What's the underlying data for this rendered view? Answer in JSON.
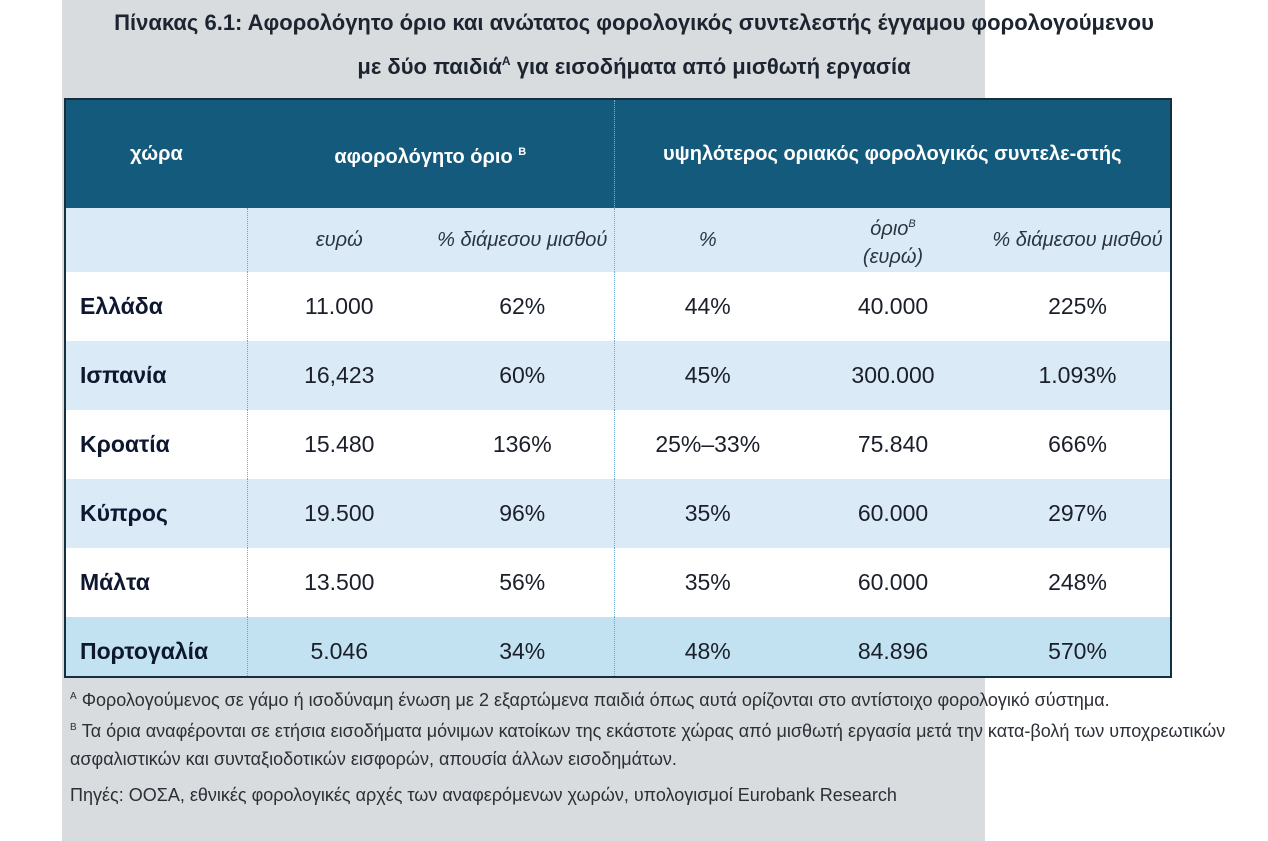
{
  "title": {
    "line1": "Πίνακας 6.1: Αφορολόγητο όριο και ανώτατος φορολογικός συντελεστής έγγαμου φορολογούμενου",
    "line2_pre": "με δύο παιδιά",
    "line2_sup": "A",
    "line2_post": " για εισοδήματα από μισθωτή εργασία"
  },
  "table": {
    "group_headers": {
      "country": "χώρα",
      "threshold": "αφορολόγητο όριο",
      "threshold_sup": "B",
      "top_rate": "υψηλότερος οριακός φορολογικός συντελε-στής"
    },
    "sub_headers": {
      "eur": "ευρώ",
      "pct_median_1": "% διάμεσου μισθού",
      "pct": "%",
      "limit": "όριο",
      "limit_sup": "B",
      "limit_unit": "(ευρώ)",
      "pct_median_2": "% διάμεσου μισθού"
    },
    "rows": [
      {
        "country": "Ελλάδα",
        "eur": "11.000",
        "pct_median": "62%",
        "rate": "44%",
        "limit": "40.000",
        "limit_pct_median": "225%"
      },
      {
        "country": "Ισπανία",
        "eur": "16,423",
        "pct_median": "60%",
        "rate": "45%",
        "limit": "300.000",
        "limit_pct_median": "1.093%"
      },
      {
        "country": "Κροατία",
        "eur": "15.480",
        "pct_median": "136%",
        "rate": "25%–33%",
        "limit": "75.840",
        "limit_pct_median": "666%"
      },
      {
        "country": "Κύπρος",
        "eur": "19.500",
        "pct_median": "96%",
        "rate": "35%",
        "limit": "60.000",
        "limit_pct_median": "297%"
      },
      {
        "country": "Μάλτα",
        "eur": "13.500",
        "pct_median": "56%",
        "rate": "35%",
        "limit": "60.000",
        "limit_pct_median": "248%"
      },
      {
        "country": "Πορτογαλία",
        "eur": "5.046",
        "pct_median": "34%",
        "rate": "48%",
        "limit": "84.896",
        "limit_pct_median": "570%"
      }
    ]
  },
  "notes": {
    "a_sup": "A",
    "a_text": "Φορολογούμενος σε γάμο ή ισοδύναμη ένωση με 2 εξαρτώμενα παιδιά όπως αυτά ορίζονται στο αντίστοιχο φορολογικό σύστημα.",
    "b_sup": "B",
    "b_text": "Τα όρια αναφέρονται σε ετήσια εισοδήματα μόνιμων κατοίκων της εκάστοτε χώρας από μισθωτή εργασία μετά την κατα-βολή των υποχρεωτικών ασφαλιστικών και συνταξιοδοτικών εισφορών, απουσία άλλων εισοδημάτων.",
    "source": "Πηγές: ΟΟΣΑ, εθνικές φορολογικές αρχές των αναφερόμενων χωρών, υπολογισμοί Eurobank Research"
  },
  "colors": {
    "header_dark": "#145a7c",
    "header_light": "#dbeaf7",
    "row_highlight": "#c2e2f2",
    "background_band": "#d9dcdf"
  }
}
